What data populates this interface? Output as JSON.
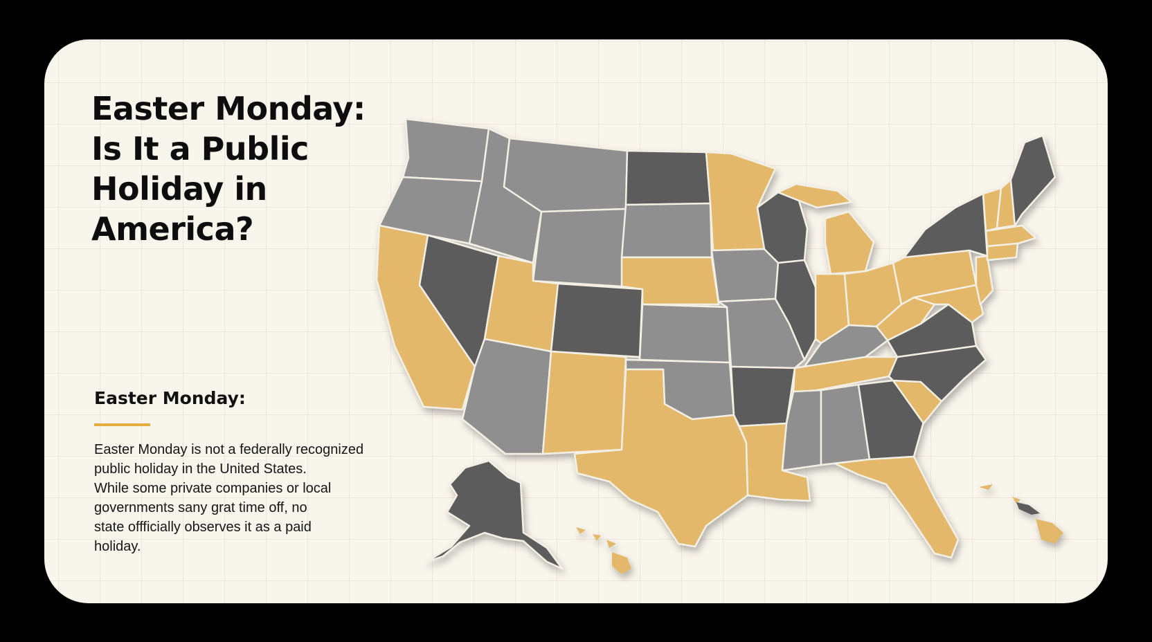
{
  "title": {
    "line1": "Easter Monday:",
    "line2": "Is It a Public",
    "line3": "Holiday in",
    "line4": "America?"
  },
  "section": {
    "heading": "Easter Monday:",
    "body_lines": [
      "Easter Monday is not a federally recognized",
      "public holiday in the United States.",
      "While some private companies or local",
      "governments sany grat time off, no",
      "state offficially observes it as a paid",
      "holiday."
    ]
  },
  "colors": {
    "background": "#000000",
    "card": "#f8f5ec",
    "accent_gold": "#e3b86a",
    "gray_light": "#8f8f8f",
    "gray_dark": "#5b5b5b",
    "rule": "#e3ad40"
  }
}
